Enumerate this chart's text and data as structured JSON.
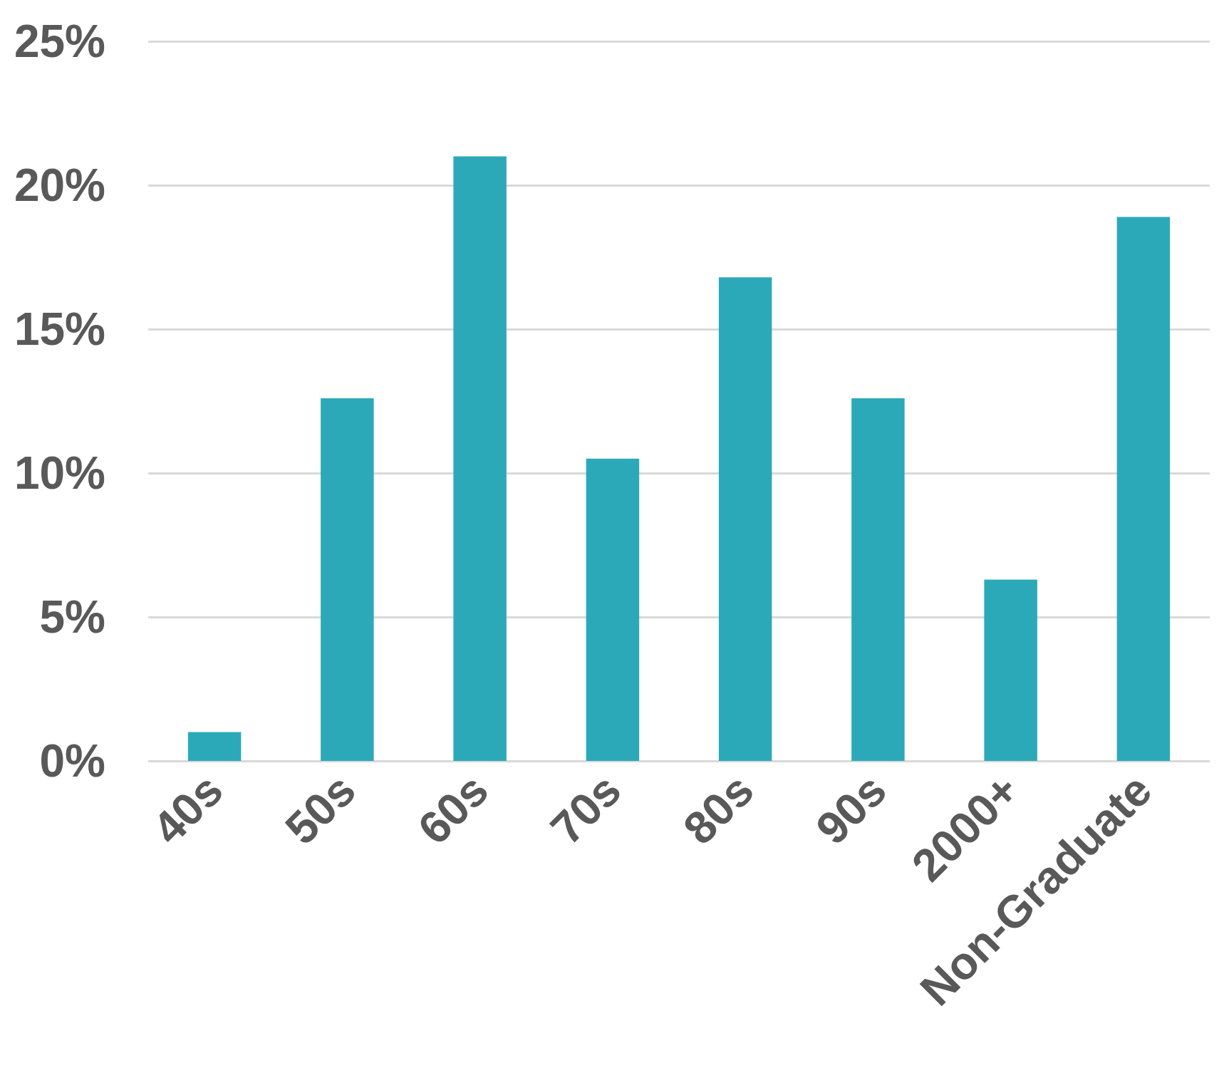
{
  "chart_data": {
    "type": "bar",
    "categories": [
      "40s",
      "50s",
      "60s",
      "70s",
      "80s",
      "90s",
      "2000+",
      "Non-Graduate"
    ],
    "values": [
      1.0,
      12.6,
      21.0,
      10.5,
      16.8,
      12.6,
      6.3,
      18.9
    ],
    "color": "#2ca9b9",
    "ylim": [
      0,
      25
    ],
    "yticks": [
      {
        "value": 0,
        "label": "0%"
      },
      {
        "value": 5,
        "label": "5%"
      },
      {
        "value": 10,
        "label": "10%"
      },
      {
        "value": 15,
        "label": "15%"
      },
      {
        "value": 20,
        "label": "20%"
      },
      {
        "value": 25,
        "label": "25%"
      }
    ],
    "grid": "y"
  }
}
